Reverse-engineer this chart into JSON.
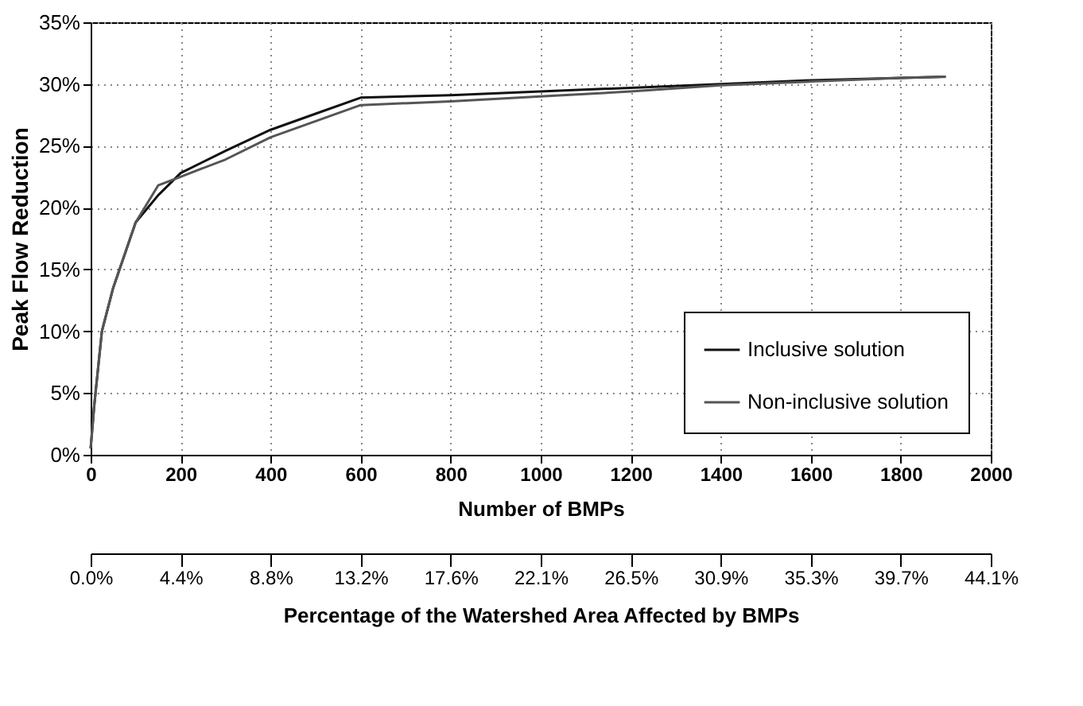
{
  "chart_data": {
    "type": "line",
    "xlabel": "Number of BMPs",
    "ylabel": "Peak Flow Reduction",
    "xlim": [
      0,
      2000
    ],
    "xticks": [
      0,
      200,
      400,
      600,
      800,
      1000,
      1200,
      1400,
      1600,
      1800,
      2000
    ],
    "ylim": [
      0,
      35
    ],
    "yticks": [
      {
        "value": 0,
        "label": "0%"
      },
      {
        "value": 5,
        "label": "5%"
      },
      {
        "value": 10,
        "label": "10%"
      },
      {
        "value": 15,
        "label": "15%"
      },
      {
        "value": 20,
        "label": "20%"
      },
      {
        "value": 25,
        "label": "25%"
      },
      {
        "value": 30,
        "label": "30%"
      },
      {
        "value": 35,
        "label": "35%"
      }
    ],
    "x2label": "Percentage of the Watershed Area Affected by BMPs",
    "x2lim": [
      0,
      44.1
    ],
    "x2ticks": [
      {
        "value": 0,
        "label": "0.0%"
      },
      {
        "value": 4.41,
        "label": "4.4%"
      },
      {
        "value": 8.82,
        "label": "8.8%"
      },
      {
        "value": 13.23,
        "label": "13.2%"
      },
      {
        "value": 17.64,
        "label": "17.6%"
      },
      {
        "value": 22.05,
        "label": "22.1%"
      },
      {
        "value": 26.46,
        "label": "26.5%"
      },
      {
        "value": 30.87,
        "label": "30.9%"
      },
      {
        "value": 35.28,
        "label": "35.3%"
      },
      {
        "value": 39.69,
        "label": "39.7%"
      },
      {
        "value": 44.1,
        "label": "44.1%"
      }
    ],
    "grid": true,
    "legend": "bottom right",
    "line_style": "solid",
    "marker": "none",
    "series": [
      {
        "name": "Inclusive solution",
        "color": "#111111",
        "x": [
          0,
          8,
          25,
          50,
          100,
          150,
          200,
          300,
          400,
          500,
          600,
          800,
          1000,
          1200,
          1400,
          1600,
          1800,
          1900
        ],
        "values": [
          0.5,
          4,
          10,
          13.5,
          18.8,
          21,
          22.8,
          24.6,
          26.3,
          27.6,
          28.9,
          29.1,
          29.4,
          29.7,
          30,
          30.3,
          30.5,
          30.6
        ]
      },
      {
        "name": "Non-inclusive solution",
        "color": "#555555",
        "x": [
          0,
          8,
          25,
          50,
          100,
          150,
          200,
          300,
          400,
          500,
          600,
          800,
          1000,
          1200,
          1400,
          1600,
          1800,
          1900
        ],
        "values": [
          0.5,
          4,
          10,
          13.5,
          18.8,
          21.8,
          22.5,
          23.9,
          25.7,
          27,
          28.3,
          28.6,
          29,
          29.4,
          29.9,
          30.2,
          30.5,
          30.6
        ]
      }
    ]
  }
}
